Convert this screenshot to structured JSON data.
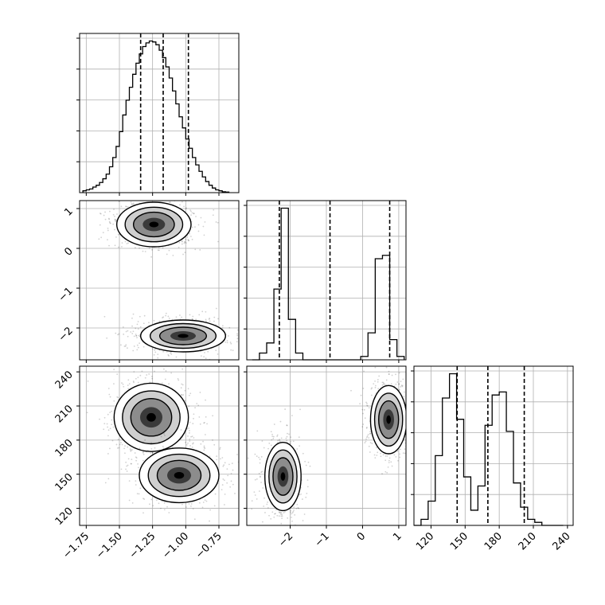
{
  "figure": {
    "type": "corner-plot"
  },
  "chart_data": [
    {
      "type": "histogram",
      "panel": "hist-p1",
      "bins_x": [
        -1.775,
        -1.75,
        -1.725,
        -1.7,
        -1.675,
        -1.65,
        -1.625,
        -1.6,
        -1.575,
        -1.55,
        -1.525,
        -1.5,
        -1.475,
        -1.45,
        -1.425,
        -1.4,
        -1.375,
        -1.35,
        -1.325,
        -1.3,
        -1.275,
        -1.25,
        -1.225,
        -1.2,
        -1.175,
        -1.15,
        -1.125,
        -1.1,
        -1.075,
        -1.05,
        -1.025,
        -1.0,
        -0.975,
        -0.95,
        -0.925,
        -0.9,
        -0.875,
        -0.85,
        -0.825,
        -0.8,
        -0.775,
        -0.75,
        -0.725,
        -0.7,
        -0.675
      ],
      "counts": [
        0.1,
        0.15,
        0.2,
        0.3,
        0.4,
        0.55,
        0.75,
        1.0,
        1.4,
        1.9,
        2.5,
        3.3,
        4.2,
        5.0,
        5.7,
        6.4,
        7.0,
        7.5,
        7.9,
        8.1,
        8.2,
        8.15,
        8.0,
        7.7,
        7.3,
        6.8,
        6.2,
        5.5,
        4.8,
        4.1,
        3.5,
        2.9,
        2.4,
        1.9,
        1.5,
        1.15,
        0.85,
        0.6,
        0.4,
        0.25,
        0.15,
        0.1,
        0.05,
        0.03
      ],
      "quantile_lines": [
        -1.34,
        -1.17,
        -0.98
      ],
      "xlim": [
        -1.8,
        -0.6
      ]
    },
    {
      "type": "contour-2d",
      "panel": "p2-vs-p1",
      "xlim": [
        -1.8,
        -0.6
      ],
      "ylim": [
        -2.8,
        1.2
      ],
      "clusters": [
        {
          "cx": -1.24,
          "cy": 0.6,
          "sx": 0.14,
          "sy": 0.28
        },
        {
          "cx": -1.02,
          "cy": -2.2,
          "sx": 0.16,
          "sy": 0.2
        }
      ]
    },
    {
      "type": "histogram",
      "panel": "hist-p2",
      "bins_x": [
        -3.05,
        -2.85,
        -2.65,
        -2.45,
        -2.25,
        -2.05,
        -1.85,
        -1.65,
        -1.45,
        -1.25,
        -1.05,
        -0.85,
        -0.65,
        -0.45,
        -0.25,
        -0.05,
        0.15,
        0.35,
        0.55,
        0.75,
        0.95,
        1.15
      ],
      "counts": [
        0.0,
        0.2,
        0.5,
        2.1,
        4.5,
        1.2,
        0.2,
        0.0,
        0.0,
        0.0,
        0.0,
        0.0,
        0.0,
        0.0,
        0.0,
        0.1,
        0.8,
        3.0,
        3.1,
        0.6,
        0.1
      ],
      "quantile_lines": [
        -2.3,
        -0.9,
        0.75
      ],
      "xlim": [
        -3.2,
        1.2
      ]
    },
    {
      "type": "contour-2d",
      "panel": "p3-vs-p1",
      "xlim": [
        -1.8,
        -0.6
      ],
      "ylim": [
        105,
        245
      ],
      "clusters": [
        {
          "cx": -1.26,
          "cy": 200,
          "sx": 0.14,
          "sy": 15
        },
        {
          "cx": -1.05,
          "cy": 149,
          "sx": 0.15,
          "sy": 12
        }
      ]
    },
    {
      "type": "contour-2d",
      "panel": "p3-vs-p2",
      "xlim": [
        -3.2,
        1.2
      ],
      "ylim": [
        105,
        245
      ],
      "clusters": [
        {
          "cx": -2.2,
          "cy": 148,
          "sx": 0.25,
          "sy": 15
        },
        {
          "cx": 0.72,
          "cy": 198,
          "sx": 0.25,
          "sy": 15
        }
      ]
    },
    {
      "type": "histogram",
      "panel": "hist-p3",
      "bins_x": [
        105,
        111.25,
        117.5,
        123.75,
        130,
        136.25,
        142.5,
        148.75,
        155,
        161.25,
        167.5,
        173.75,
        180,
        186.25,
        192.5,
        198.75,
        205,
        211.25,
        217.5,
        223.75,
        230,
        236.25
      ],
      "counts": [
        0.0,
        0.2,
        0.8,
        2.3,
        4.2,
        5.0,
        3.5,
        1.6,
        0.5,
        1.3,
        3.3,
        4.3,
        4.4,
        3.1,
        1.4,
        0.6,
        0.2,
        0.1,
        0.0,
        0.0,
        0.0
      ],
      "quantile_lines": [
        143,
        170,
        202
      ],
      "xlim": [
        105,
        245
      ]
    }
  ],
  "axes": {
    "p1_ticks": [
      "−1.75",
      "−1.50",
      "−1.25",
      "−1.00",
      "−0.75"
    ],
    "p1_values": [
      -1.75,
      -1.5,
      -1.25,
      -1.0,
      -0.75
    ],
    "p2_ticks": [
      "−2",
      "−1",
      "0",
      "1"
    ],
    "p2_values": [
      -2,
      -1,
      0,
      1
    ],
    "p3_ticks": [
      "120",
      "150",
      "180",
      "210",
      "240"
    ],
    "p3_values": [
      120,
      150,
      180,
      210,
      240
    ]
  }
}
